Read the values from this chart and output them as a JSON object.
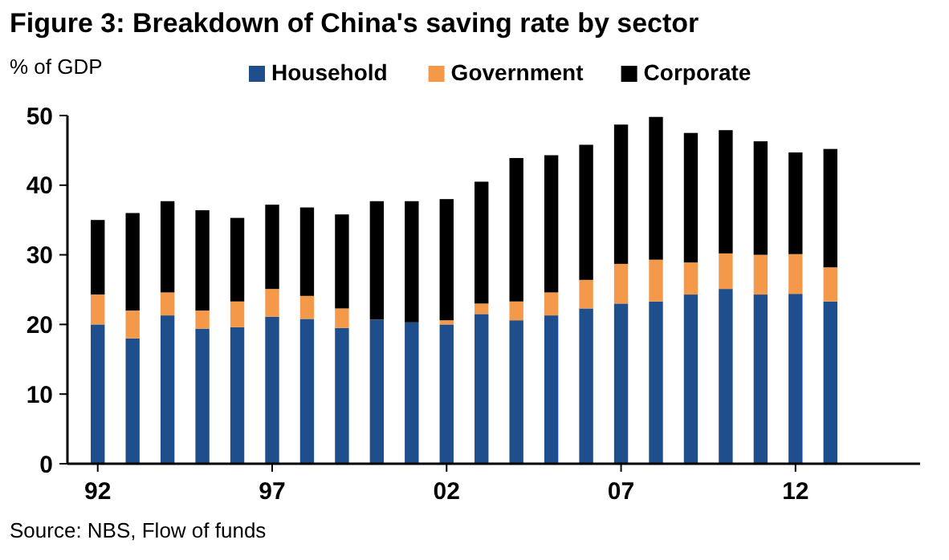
{
  "chart_data": {
    "type": "bar",
    "title": "Figure 3: Breakdown of China's saving rate by sector",
    "ylabel": "% of GDP",
    "stacked": true,
    "categories": [
      "92",
      null,
      null,
      null,
      null,
      "97",
      null,
      null,
      null,
      null,
      "02",
      null,
      null,
      null,
      null,
      "07",
      null,
      null,
      null,
      null,
      "12",
      null
    ],
    "series": [
      {
        "name": "Household",
        "color": "#1f4e8c",
        "values": [
          20,
          18,
          21.3,
          19.4,
          19.6,
          21.1,
          20.8,
          19.5,
          20.7,
          20.3,
          20,
          21.5,
          20.6,
          21.3,
          22.3,
          23,
          23.3,
          24.3,
          25.1,
          24.3,
          24.4,
          23.3
        ]
      },
      {
        "name": "Government",
        "color": "#f4994a",
        "values": [
          4.3,
          4,
          3.3,
          2.6,
          3.7,
          4,
          3.3,
          2.8,
          0,
          0,
          0.6,
          1.5,
          2.7,
          3.3,
          4.1,
          5.7,
          6,
          4.6,
          5.1,
          5.7,
          5.7,
          4.9
        ]
      },
      {
        "name": "Corporate",
        "color": "#000000",
        "values": [
          10.7,
          14,
          13.1,
          14.4,
          12,
          12.1,
          12.7,
          13.5,
          17,
          17.4,
          17.4,
          17.5,
          20.6,
          19.7,
          19.4,
          20,
          20.5,
          18.6,
          17.7,
          16.3,
          14.6,
          17
        ]
      }
    ],
    "ylim": [
      0,
      50
    ],
    "yticks": [
      0,
      10,
      20,
      30,
      40,
      50
    ],
    "grid": false,
    "legend": "top",
    "annotations": [
      "Source: NBS, Flow of funds"
    ]
  }
}
